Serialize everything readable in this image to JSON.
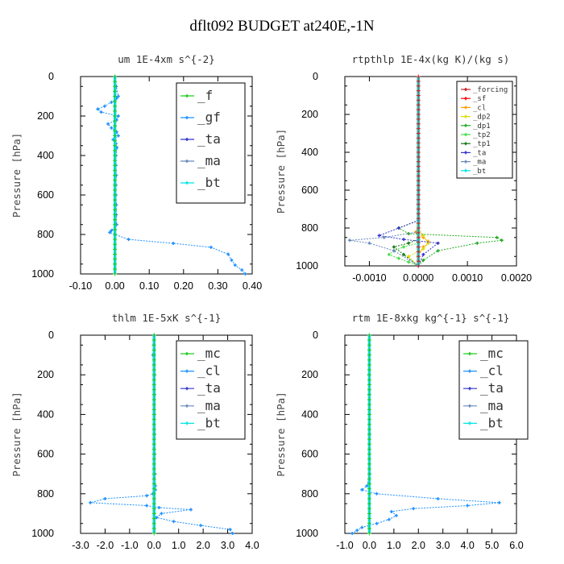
{
  "title": "dflt092  BUDGET at240E,-1N",
  "chart_data": [
    {
      "type": "line",
      "title": "um  1E-4xm s^{-2}",
      "ylabel": "Pressure [hPa]",
      "xlim": [
        -0.1,
        0.4
      ],
      "xticks": [
        "-0.10",
        "0.00",
        "0.10",
        "0.20",
        "0.30",
        "0.40"
      ],
      "ylim": [
        1000,
        0
      ],
      "yticks": [
        "0",
        "200",
        "400",
        "600",
        "800",
        "1000"
      ],
      "legend": "top-right",
      "series": [
        {
          "name": "_f",
          "color": "#22cc22",
          "x": [
            0,
            0,
            0,
            0,
            0,
            0,
            0,
            0,
            0,
            0,
            0,
            0,
            0,
            0,
            0,
            0,
            0,
            0,
            0,
            0,
            0,
            0
          ],
          "y": [
            0,
            50,
            100,
            150,
            200,
            250,
            300,
            350,
            400,
            450,
            500,
            550,
            600,
            650,
            700,
            750,
            800,
            850,
            900,
            950,
            980,
            1000
          ]
        },
        {
          "name": "_gf",
          "color": "#1e90ff",
          "x": [
            0,
            0.004,
            0.01,
            0.005,
            -0.01,
            -0.03,
            -0.05,
            -0.04,
            0.01,
            0.005,
            -0.02,
            -0.01,
            0.005,
            0.01,
            -0.005,
            0.003,
            0.006,
            0.003,
            0.003,
            0.004,
            0.003,
            0.003,
            0.004,
            0.004,
            0.005,
            -0.01,
            -0.015,
            0.0,
            0.04,
            0.17,
            0.28,
            0.33,
            0.34,
            0.35,
            0.37,
            0.38
          ],
          "y": [
            0,
            50,
            100,
            110,
            130,
            150,
            165,
            180,
            200,
            220,
            240,
            260,
            280,
            300,
            320,
            340,
            360,
            400,
            450,
            500,
            550,
            600,
            650,
            700,
            750,
            780,
            790,
            800,
            825,
            845,
            865,
            900,
            930,
            955,
            980,
            1000
          ]
        },
        {
          "name": "_ta",
          "color": "#3333cc",
          "x": [
            0,
            0,
            0,
            0,
            0,
            0,
            0,
            0,
            0,
            0
          ],
          "y": [
            0,
            100,
            200,
            300,
            400,
            500,
            600,
            700,
            800,
            1000
          ]
        },
        {
          "name": "_ma",
          "color": "#6688bb",
          "x": [
            0,
            0,
            0,
            0,
            0,
            0
          ],
          "y": [
            0,
            200,
            400,
            600,
            800,
            1000
          ]
        },
        {
          "name": "_bt",
          "color": "#00e5e5",
          "x": [
            0,
            0,
            0,
            0,
            0,
            0
          ],
          "y": [
            0,
            200,
            400,
            600,
            800,
            1000
          ]
        }
      ]
    },
    {
      "type": "line",
      "title": "rtpthlp  1E-4x(kg K)/(kg s)",
      "ylabel": "Pressure [hPa]",
      "xlim": [
        -0.0015,
        0.002
      ],
      "xticks": [
        "-0.0010",
        "0.0000",
        "0.0010",
        "0.0020"
      ],
      "xtickvals": [
        -0.001,
        0,
        0.001,
        0.002
      ],
      "ylim": [
        1000,
        0
      ],
      "yticks": [
        "0",
        "200",
        "400",
        "600",
        "800",
        "1000"
      ],
      "legend": "top-right",
      "series": [
        {
          "name": "_forcing",
          "color": "#cc2222",
          "x": [
            0,
            0,
            0,
            0,
            0,
            0,
            0,
            0,
            0,
            0,
            0
          ],
          "y": [
            0,
            100,
            200,
            300,
            400,
            500,
            600,
            700,
            800,
            900,
            1000
          ]
        },
        {
          "name": "_sf",
          "color": "#ff0000",
          "x": [
            0,
            0,
            0,
            0,
            0,
            0,
            0,
            0,
            0,
            0,
            0
          ],
          "y": [
            0,
            100,
            200,
            300,
            400,
            500,
            600,
            700,
            800,
            900,
            1000
          ]
        },
        {
          "name": "_cl",
          "color": "#ff9900",
          "x": [
            0,
            -5e-05,
            0.0001,
            0.0002,
            0.0002,
            0.0001,
            0,
            0
          ],
          "y": [
            780,
            820,
            850,
            870,
            880,
            900,
            950,
            1000
          ]
        },
        {
          "name": "_dp2",
          "color": "#dddd00",
          "x": [
            0,
            0.0001,
            0.0002,
            0.0001,
            -0.0002,
            0
          ],
          "y": [
            800,
            840,
            880,
            910,
            950,
            1000
          ]
        },
        {
          "name": "_dp1",
          "color": "#22aa22",
          "x": [
            0,
            -0.0004,
            -0.0002,
            0.0016,
            0.0017,
            0.0012,
            0.0004,
            0.0001,
            0
          ],
          "y": [
            760,
            800,
            830,
            850,
            865,
            880,
            920,
            970,
            1000
          ]
        },
        {
          "name": "_tp2",
          "color": "#44dd44",
          "x": [
            0,
            -0.0003,
            -0.0005,
            -0.0006,
            -0.0004,
            -0.0002,
            0
          ],
          "y": [
            880,
            900,
            920,
            940,
            960,
            980,
            1000
          ]
        },
        {
          "name": "_tp1",
          "color": "#117711",
          "x": [
            0,
            -0.0002,
            -0.0005,
            -0.0003,
            0
          ],
          "y": [
            860,
            880,
            900,
            940,
            1000
          ]
        },
        {
          "name": "_ta",
          "color": "#3333cc",
          "x": [
            0,
            -0.0004,
            -0.0008,
            -0.0003,
            0.0004,
            0.0001,
            0
          ],
          "y": [
            760,
            800,
            840,
            860,
            880,
            940,
            1000
          ]
        },
        {
          "name": "_ma",
          "color": "#6688bb",
          "x": [
            0,
            -0.0007,
            -0.0014,
            -0.001,
            -0.0005,
            0
          ],
          "y": [
            820,
            850,
            865,
            880,
            920,
            1000
          ]
        },
        {
          "name": "_bt",
          "color": "#00e5e5",
          "x": [
            0,
            0,
            0,
            0,
            0,
            0
          ],
          "y": [
            0,
            200,
            400,
            600,
            800,
            1000
          ]
        }
      ]
    },
    {
      "type": "line",
      "title": "thlm  1E-5xK s^{-1}",
      "ylabel": "Pressure [hPa]",
      "xlim": [
        -3.0,
        4.0
      ],
      "xticks": [
        "-3.0",
        "-2.0",
        "-1.0",
        "0.0",
        "1.0",
        "2.0",
        "3.0",
        "4.0"
      ],
      "ylim": [
        1000,
        0
      ],
      "yticks": [
        "0",
        "200",
        "400",
        "600",
        "800",
        "1000"
      ],
      "legend": "top-right",
      "series": [
        {
          "name": "_mc",
          "color": "#22cc22",
          "x": [
            0,
            0,
            0,
            0,
            0,
            0,
            0,
            0,
            0,
            0,
            0,
            0
          ],
          "y": [
            0,
            100,
            200,
            300,
            400,
            500,
            600,
            700,
            800,
            900,
            950,
            1000
          ]
        },
        {
          "name": "_cl",
          "color": "#1e90ff",
          "x": [
            0,
            -0.02,
            -0.05,
            -0.01,
            0.03,
            0.02,
            0.01,
            0.02,
            0.03,
            0.04,
            0.05,
            0.05,
            -0.05,
            -0.3,
            -2.0,
            -2.6,
            -0.3,
            0.2,
            1.5,
            0.3,
            0.1,
            0.8,
            1.9,
            3.1,
            3.2
          ],
          "y": [
            0,
            50,
            100,
            150,
            200,
            300,
            400,
            500,
            600,
            700,
            760,
            780,
            800,
            810,
            825,
            845,
            860,
            870,
            880,
            900,
            920,
            940,
            960,
            980,
            1000
          ]
        },
        {
          "name": "_ta",
          "color": "#3333cc",
          "x": [
            0,
            0,
            0,
            0,
            0,
            0
          ],
          "y": [
            0,
            200,
            400,
            600,
            800,
            1000
          ]
        },
        {
          "name": "_ma",
          "color": "#6688bb",
          "x": [
            0,
            0,
            0,
            0,
            0,
            0
          ],
          "y": [
            0,
            200,
            400,
            600,
            800,
            1000
          ]
        },
        {
          "name": "_bt",
          "color": "#00e5e5",
          "x": [
            0,
            0,
            0,
            0,
            0,
            0
          ],
          "y": [
            0,
            200,
            400,
            600,
            800,
            1000
          ]
        }
      ]
    },
    {
      "type": "line",
      "title": "rtm  1E-8xkg kg^{-1} s^{-1}",
      "ylabel": "Pressure [hPa]",
      "xlim": [
        -1.0,
        6.0
      ],
      "xticks": [
        "-1.0",
        "0.0",
        "1.0",
        "2.0",
        "3.0",
        "4.0",
        "5.0",
        "6.0"
      ],
      "ylim": [
        1000,
        0
      ],
      "yticks": [
        "0",
        "200",
        "400",
        "600",
        "800",
        "1000"
      ],
      "legend": "top-right",
      "series": [
        {
          "name": "_mc",
          "color": "#22cc22",
          "x": [
            0,
            0,
            0,
            0,
            0,
            0,
            0,
            0,
            0,
            0,
            0,
            0
          ],
          "y": [
            0,
            100,
            200,
            300,
            400,
            500,
            600,
            700,
            800,
            900,
            950,
            1000
          ]
        },
        {
          "name": "_cl",
          "color": "#1e90ff",
          "x": [
            0,
            0,
            -0.02,
            -0.01,
            0,
            0.01,
            0.02,
            -0.1,
            -0.3,
            0.3,
            2.8,
            5.3,
            4.0,
            1.8,
            0.9,
            1.1,
            0.8,
            0.3,
            -0.3,
            -0.5,
            -0.7
          ],
          "y": [
            0,
            100,
            200,
            300,
            400,
            500,
            700,
            760,
            780,
            800,
            825,
            845,
            860,
            875,
            890,
            910,
            930,
            950,
            970,
            985,
            1000
          ]
        },
        {
          "name": "_ta",
          "color": "#3333cc",
          "x": [
            0,
            0,
            0,
            0,
            0,
            0
          ],
          "y": [
            0,
            200,
            400,
            600,
            800,
            1000
          ]
        },
        {
          "name": "_ma",
          "color": "#6688bb",
          "x": [
            0,
            0,
            0,
            0,
            0,
            0
          ],
          "y": [
            0,
            200,
            400,
            600,
            800,
            1000
          ]
        },
        {
          "name": "_bt",
          "color": "#00e5e5",
          "x": [
            0,
            0,
            0,
            0,
            0,
            0
          ],
          "y": [
            0,
            200,
            400,
            600,
            800,
            1000
          ]
        }
      ]
    }
  ]
}
